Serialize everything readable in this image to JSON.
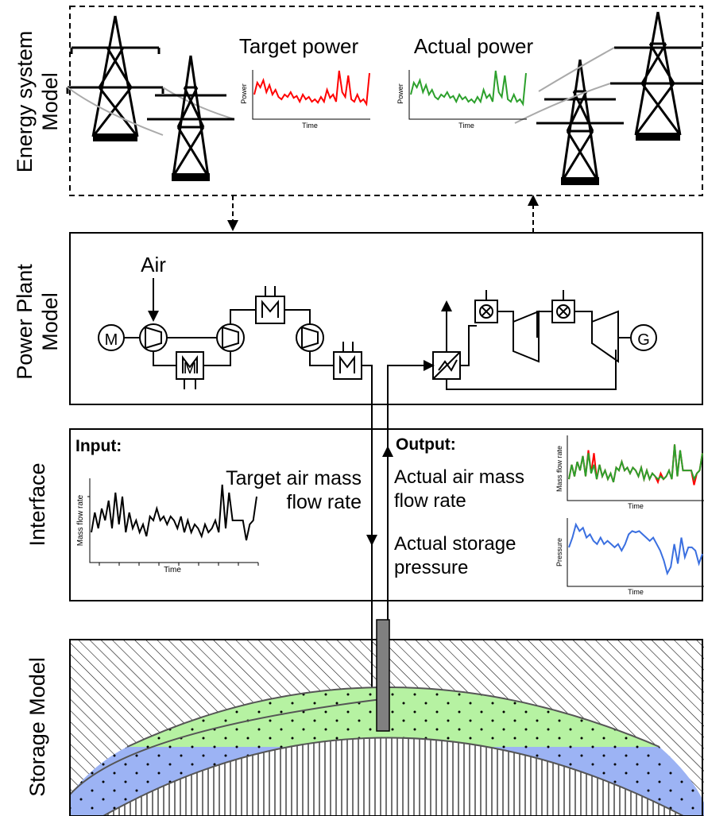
{
  "labels": {
    "energy_system_line1": "Energy system",
    "energy_system_line2": "Model",
    "power_plant_line1": "Power Plant",
    "power_plant_line2": "Model",
    "interface": "Interface",
    "storage": "Storage Model"
  },
  "energy": {
    "target_power": "Target power",
    "actual_power": "Actual power"
  },
  "plant": {
    "air": "Air",
    "motor": "M",
    "generator": "G",
    "motor_box": "M"
  },
  "interface": {
    "input_heading": "Input:",
    "output_heading": "Output:",
    "target_flow_line1": "Target air mass",
    "target_flow_line2": "flow rate",
    "actual_flow_line1": "Actual air mass",
    "actual_flow_line2": "flow rate",
    "actual_pressure_line1": "Actual storage",
    "actual_pressure_line2": "pressure"
  },
  "colors": {
    "target": "#ff0000",
    "actual": "#2ca02c",
    "input": "#000000",
    "pressure": "#3a6fe0",
    "gas_layer": "#b6f2a2",
    "water_layer": "#9cb3f4",
    "well": "#808080"
  },
  "chart_data": [
    {
      "type": "line",
      "xlabel": "Time",
      "ylabel": "Power",
      "series": [
        {
          "values": [
            0.45,
            0.7,
            0.6,
            0.75,
            0.5,
            0.65,
            0.45,
            0.55,
            0.4,
            0.35,
            0.45,
            0.4,
            0.5,
            0.38,
            0.42,
            0.3,
            0.45,
            0.35,
            0.4,
            0.3,
            0.35,
            0.28,
            0.4,
            0.3,
            0.55,
            0.38,
            0.45,
            0.3,
            0.95,
            0.5,
            0.4,
            0.85,
            0.35,
            0.3,
            0.45,
            0.3,
            0.35,
            0.25,
            0.9
          ]
        }
      ]
    },
    {
      "type": "line",
      "xlabel": "Time",
      "ylabel": "Power",
      "series": [
        {
          "values": [
            0.45,
            0.7,
            0.6,
            0.75,
            0.5,
            0.65,
            0.45,
            0.55,
            0.4,
            0.35,
            0.45,
            0.4,
            0.5,
            0.38,
            0.42,
            0.3,
            0.45,
            0.35,
            0.4,
            0.3,
            0.35,
            0.28,
            0.4,
            0.3,
            0.55,
            0.38,
            0.45,
            0.3,
            0.95,
            0.5,
            0.4,
            0.85,
            0.35,
            0.3,
            0.45,
            0.3,
            0.35,
            0.25,
            0.9
          ]
        }
      ]
    },
    {
      "type": "line",
      "xlabel": "Time",
      "ylabel": "Mass flow rate",
      "series": [
        {
          "values": [
            0.3,
            0.55,
            0.35,
            0.6,
            0.45,
            0.7,
            0.35,
            0.8,
            0.4,
            0.75,
            0.3,
            0.55,
            0.35,
            0.45,
            0.3,
            0.4,
            0.25,
            0.5,
            0.45,
            0.6,
            0.45,
            0.5,
            0.4,
            0.5,
            0.45,
            0.35,
            0.5,
            0.3,
            0.45,
            0.3,
            0.4,
            0.35,
            0.25,
            0.4,
            0.3,
            0.35,
            0.45,
            0.3,
            0.9,
            0.35,
            0.8,
            0.45,
            0.45,
            0.45,
            0.45,
            0.2,
            0.4,
            0.45,
            0.75
          ]
        }
      ]
    },
    {
      "type": "line",
      "xlabel": "Time",
      "ylabel": "Mass flow rate",
      "series": [
        {
          "values": [
            0.3,
            0.55,
            0.35,
            0.6,
            0.45,
            0.7,
            0.35,
            0.8,
            0.4,
            0.75,
            0.3,
            0.55,
            0.35,
            0.45,
            0.3,
            0.4,
            0.25,
            0.5,
            0.45,
            0.6,
            0.45,
            0.5,
            0.4,
            0.5,
            0.45,
            0.35,
            0.5,
            0.3,
            0.45,
            0.3,
            0.4,
            0.35,
            0.25,
            0.4,
            0.3,
            0.35,
            0.45,
            0.3,
            0.9,
            0.35,
            0.8,
            0.45,
            0.45,
            0.45,
            0.45,
            0.2,
            0.4,
            0.45,
            0.75
          ]
        },
        {
          "values": [
            0.3,
            0.55,
            0.35,
            0.6,
            0.45,
            0.7,
            0.35,
            0.75,
            0.4,
            0.55,
            0.3,
            0.55,
            0.35,
            0.45,
            0.3,
            0.4,
            0.25,
            0.5,
            0.45,
            0.6,
            0.45,
            0.5,
            0.4,
            0.5,
            0.45,
            0.35,
            0.5,
            0.3,
            0.45,
            0.3,
            0.4,
            0.35,
            0.3,
            0.35,
            0.3,
            0.35,
            0.45,
            0.3,
            0.9,
            0.35,
            0.8,
            0.45,
            0.45,
            0.45,
            0.45,
            0.3,
            0.4,
            0.45,
            0.75
          ]
        }
      ]
    },
    {
      "type": "line",
      "xlabel": "Time",
      "ylabel": "Pressure",
      "series": [
        {
          "values": [
            0.55,
            0.7,
            0.9,
            0.8,
            0.85,
            0.7,
            0.75,
            0.65,
            0.6,
            0.7,
            0.6,
            0.65,
            0.6,
            0.55,
            0.6,
            0.5,
            0.6,
            0.75,
            0.8,
            0.78,
            0.8,
            0.75,
            0.7,
            0.65,
            0.7,
            0.6,
            0.5,
            0.35,
            0.15,
            0.25,
            0.6,
            0.3,
            0.7,
            0.4,
            0.55,
            0.55,
            0.5,
            0.3,
            0.45
          ]
        }
      ]
    }
  ]
}
